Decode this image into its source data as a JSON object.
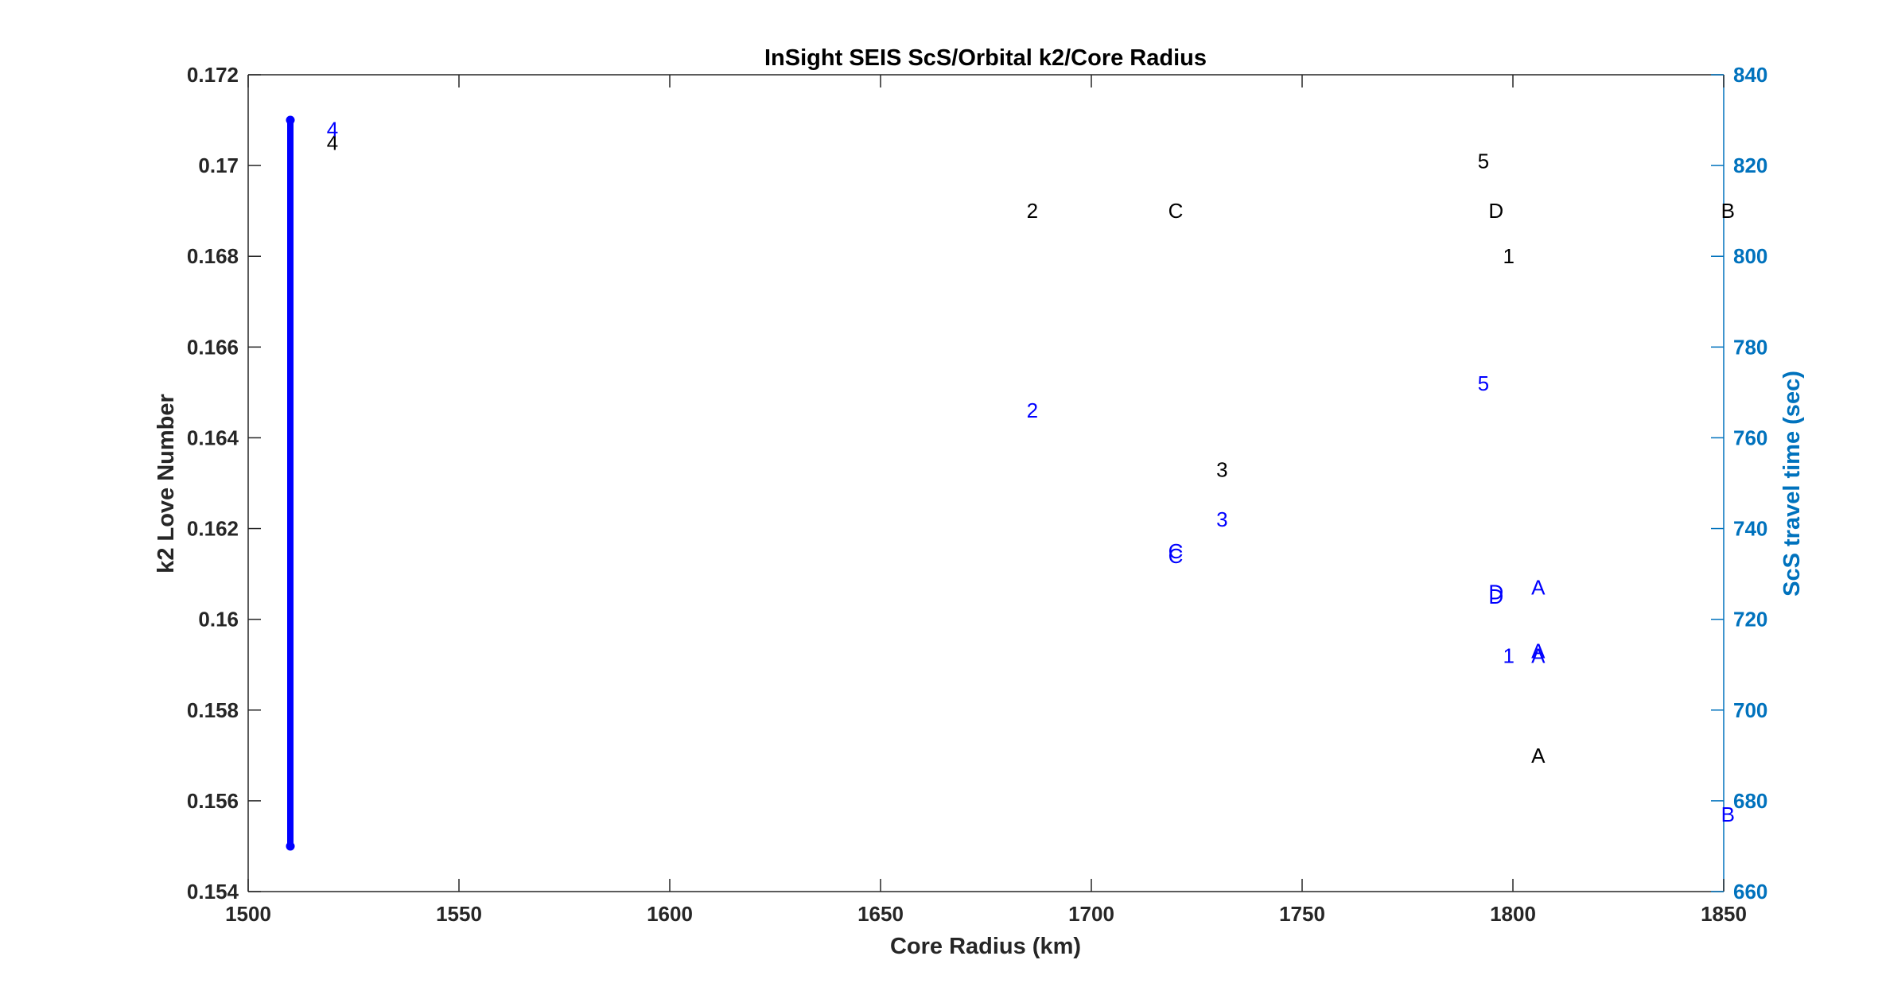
{
  "chart_data": {
    "type": "scatter",
    "title": "InSight SEIS ScS/Orbital k2/Core Radius",
    "xlabel": "Core Radius (km)",
    "ylabel_left": "k2 Love Number",
    "ylabel_right": "ScS travel time (sec)",
    "xlim": [
      1500,
      1850
    ],
    "ylim_left": [
      0.154,
      0.172
    ],
    "ylim_right": [
      660,
      840
    ],
    "x_ticks": [
      "1500",
      "1550",
      "1600",
      "1650",
      "1700",
      "1750",
      "1800",
      "1850"
    ],
    "y_ticks_left": [
      "0.154",
      "0.156",
      "0.158",
      "0.16",
      "0.162",
      "0.164",
      "0.166",
      "0.168",
      "0.17",
      "0.172"
    ],
    "y_ticks_right": [
      "660",
      "680",
      "700",
      "720",
      "740",
      "760",
      "780",
      "800",
      "820",
      "840"
    ],
    "grid": false,
    "colors": {
      "left_axis": "#262626",
      "right_axis": "#0072BD",
      "k2_markers": "#000000",
      "scs_markers": "#0000FF",
      "range_bar": "#0000FF"
    },
    "range_bar": {
      "x": 1510,
      "y_range": [
        0.155,
        0.171
      ],
      "axis": "left"
    },
    "series": [
      {
        "axis": "left",
        "points": [
          {
            "label": "4",
            "x": 1520,
            "y": 0.1705
          },
          {
            "label": "2",
            "x": 1686,
            "y": 0.169
          },
          {
            "label": "C",
            "x": 1720,
            "y": 0.169
          },
          {
            "label": "3",
            "x": 1731,
            "y": 0.1633
          },
          {
            "label": "5",
            "x": 1793,
            "y": 0.1701
          },
          {
            "label": "D",
            "x": 1796,
            "y": 0.169
          },
          {
            "label": "1",
            "x": 1799,
            "y": 0.168
          },
          {
            "label": "A",
            "x": 1806,
            "y": 0.157
          },
          {
            "label": "B",
            "x": 1851,
            "y": 0.169
          }
        ]
      },
      {
        "axis": "right",
        "points": [
          {
            "label": "4",
            "x": 1520,
            "y": 828
          },
          {
            "label": "2",
            "x": 1686,
            "y": 766
          },
          {
            "label": "C",
            "x": 1720,
            "y": 735
          },
          {
            "label": "C",
            "x": 1720,
            "y": 734
          },
          {
            "label": "3",
            "x": 1731,
            "y": 742
          },
          {
            "label": "5",
            "x": 1793,
            "y": 772
          },
          {
            "label": "D",
            "x": 1796,
            "y": 726
          },
          {
            "label": "D",
            "x": 1796,
            "y": 725
          },
          {
            "label": "1",
            "x": 1799,
            "y": 712
          },
          {
            "label": "A",
            "x": 1806,
            "y": 727
          },
          {
            "label": "A",
            "x": 1806,
            "y": 713
          },
          {
            "label": "A",
            "x": 1806,
            "y": 712
          },
          {
            "label": "B",
            "x": 1851,
            "y": 677
          }
        ]
      }
    ]
  }
}
